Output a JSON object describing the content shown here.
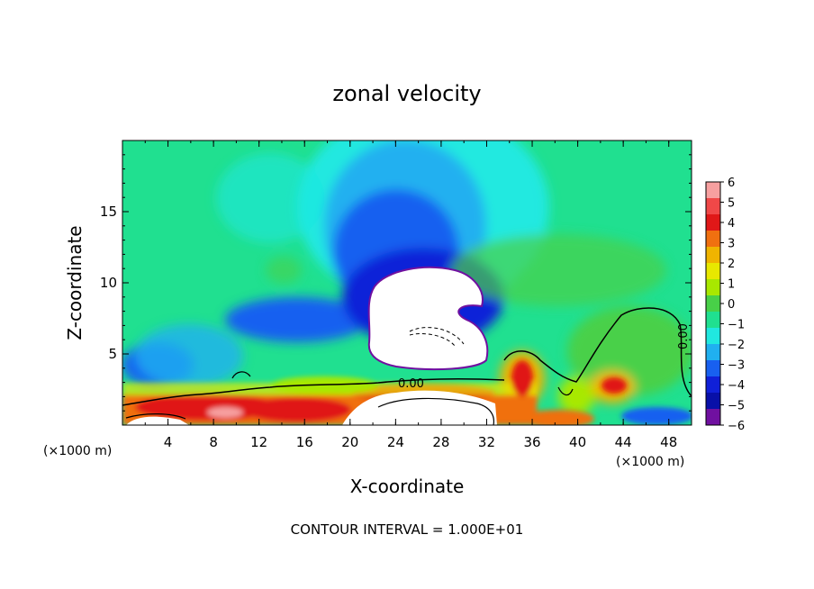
{
  "chart_data": {
    "type": "heatmap",
    "title": "zonal velocity",
    "xlabel": "X-coordinate",
    "ylabel": "Z-coordinate",
    "x_unit_left": "(×1000 m)",
    "x_unit_right": "(×1000 m)",
    "xlim": [
      0,
      50
    ],
    "ylim": [
      0,
      20
    ],
    "x_ticks": [
      4,
      8,
      12,
      16,
      20,
      24,
      28,
      32,
      36,
      40,
      44,
      48
    ],
    "y_ticks": [
      5,
      10,
      15
    ],
    "colorbar": {
      "levels": [
        6,
        5,
        4,
        3,
        2,
        1,
        0,
        -1,
        -2,
        -3,
        -4,
        -5,
        -6
      ],
      "labels": [
        "6",
        "5",
        "4",
        "3",
        "2",
        "1",
        "0",
        "−1",
        "−2",
        "−3",
        "−4",
        "−5",
        "−6"
      ],
      "colors": [
        "#f7a0a0",
        "#f04848",
        "#e01818",
        "#f07010",
        "#f0b400",
        "#e8e800",
        "#a8e800",
        "#48d048",
        "#20e090",
        "#20e8e0",
        "#20b0f0",
        "#1860f0",
        "#1020d8",
        "#0810a8",
        "#7010a0"
      ]
    },
    "contour_labels": [
      "0.00",
      "0.00"
    ],
    "footer": "CONTOUR INTERVAL = 1.000E+01"
  }
}
